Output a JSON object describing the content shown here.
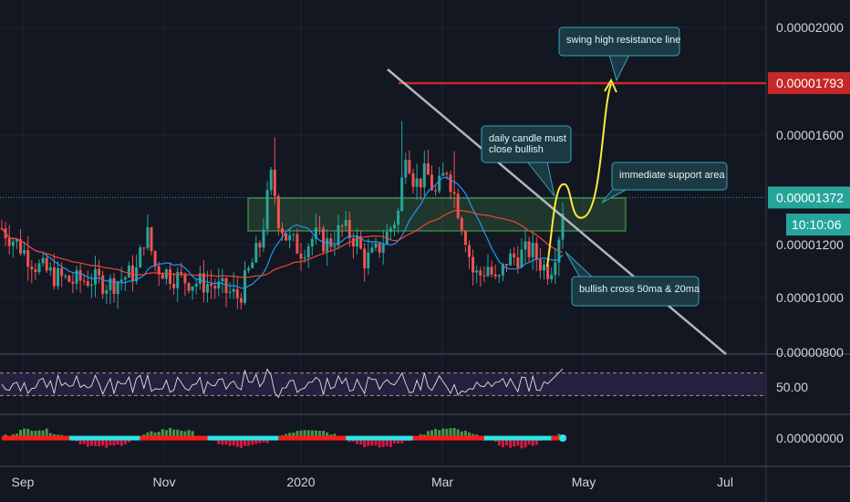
{
  "chart_data": {
    "type": "candlestick",
    "colors": {
      "background": "#131722",
      "up": "#26a69a",
      "down": "#ef5350",
      "ma20": "#2196f3",
      "ma50": "#f44336",
      "resistance": "#c62828",
      "projection": "#ffeb3b",
      "support_zone": "#4caf50",
      "trendline": "#b2b5be",
      "note_fill": "#1b3a44",
      "note_border": "#37a3b8",
      "rsi_band": "#2a2244",
      "rsi_line": "#e0e0e0"
    },
    "x_axis": {
      "labels": [
        "Sep",
        "Nov",
        "2020",
        "Mar",
        "May",
        "Jul"
      ]
    },
    "price_axis": {
      "labels": [
        "0.00002000",
        "0.00001600",
        "0.00001200",
        "0.00001000",
        "0.00000800"
      ],
      "values": [
        2e-05,
        1.6e-05,
        1.2e-05,
        1e-05,
        8e-06
      ]
    },
    "price_tags": {
      "resistance": "0.00001793",
      "last_price": "0.00001372",
      "countdown": "10:10:06"
    },
    "levels": {
      "resistance_price": 1.793e-05,
      "last_price": 1.372e-05,
      "support_zone_low": 1.25e-05,
      "support_zone_high": 1.37e-05
    },
    "annotations": {
      "resistance_note": "swing high resistance line",
      "candle_note_line1": "daily candle must",
      "candle_note_line2": "close bullish",
      "support_note": "immediate support area",
      "cross_note": "bullish cross 50ma & 20ma"
    },
    "rsi": {
      "label": "50.00",
      "upper": 70,
      "lower": 30
    },
    "oscillator": {
      "label": "0.00000000"
    }
  }
}
